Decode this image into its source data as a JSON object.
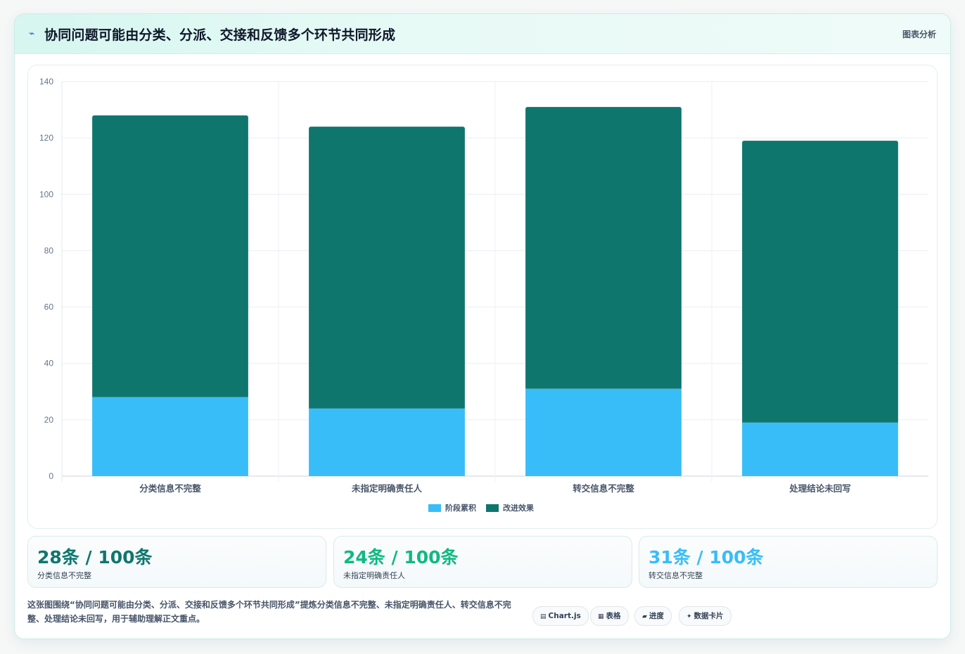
{
  "header": {
    "icon": "chart-line-icon",
    "title": "协同问题可能由分类、分派、交接和反馈多个环节共同形成",
    "tag": "图表分析"
  },
  "chart_data": {
    "type": "bar",
    "stacked": true,
    "categories": [
      "分类信息不完整",
      "未指定明确责任人",
      "转交信息不完整",
      "处理结论未回写"
    ],
    "series": [
      {
        "name": "阶段累积",
        "color": "#38bdf8",
        "values": [
          28,
          24,
          31,
          19
        ]
      },
      {
        "name": "改进效果",
        "color": "#0f766e",
        "values": [
          100,
          100,
          100,
          100
        ]
      }
    ],
    "ylim": [
      0,
      140
    ],
    "yticks": [
      0,
      20,
      40,
      60,
      80,
      100,
      120,
      140
    ],
    "grid": true,
    "legend": "bottom"
  },
  "stats": [
    {
      "value": "28条 / 100条",
      "label": "分类信息不完整",
      "color": "#0f766e"
    },
    {
      "value": "24条 / 100条",
      "label": "未指定明确责任人",
      "color": "#10b981"
    },
    {
      "value": "31条 / 100条",
      "label": "转交信息不完整",
      "color": "#38bdf8"
    }
  ],
  "note": "这张图围绕“协同问题可能由分类、分派、交接和反馈多个环节共同形成”提炼分类信息不完整、未指定明确责任人、转交信息不完整、处理结论未回写，用于辅助理解正文重点。",
  "chips": [
    {
      "icon": "chart-icon",
      "glyph": "▤",
      "label": "Chart.js"
    },
    {
      "icon": "table-icon",
      "glyph": "▦",
      "label": "表格"
    },
    {
      "icon": "progress-icon",
      "glyph": "▰",
      "label": "进度"
    },
    {
      "icon": "sparkle-icon",
      "glyph": "✦",
      "label": "数据卡片"
    }
  ]
}
